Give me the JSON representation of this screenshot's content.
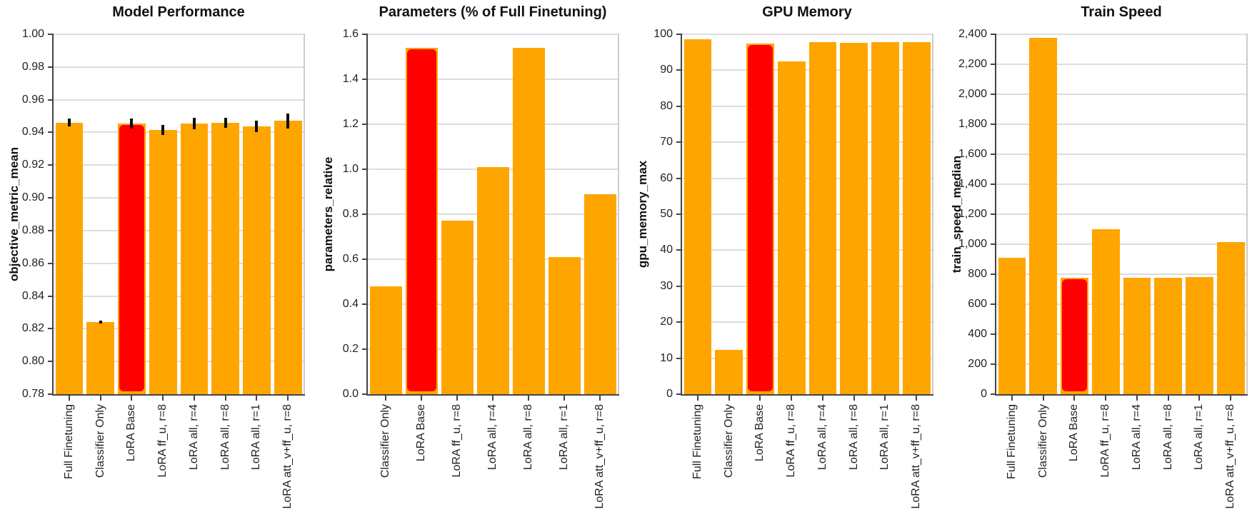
{
  "figure": {
    "background_color": "#ffffff",
    "bar_color": "#FFA500",
    "highlight_bar_color": "#FF0000",
    "highlighted_category": "LoRA Base",
    "grid_color": "#dddddd",
    "spine_color": "#cccccc",
    "axis_color": "#444444",
    "error_bar_color": "#0a0a0a"
  },
  "chart_data": [
    {
      "type": "bar",
      "title": "Model Performance",
      "ylabel": "objective_metric_mean",
      "xlabel": "",
      "categories": [
        "Full Finetuning",
        "Classifier Only",
        "LoRA Base",
        "LoRA ff_u, r=8",
        "LoRA all, r=4",
        "LoRA all, r=8",
        "LoRA all, r=1",
        "LoRA att_v+ff_u, r=8"
      ],
      "values": [
        0.946,
        0.824,
        0.9455,
        0.9415,
        0.9455,
        0.946,
        0.9435,
        0.947
      ],
      "errors": [
        0.0025,
        0.001,
        0.003,
        0.003,
        0.0035,
        0.003,
        0.0035,
        0.0045
      ],
      "highlight_index": 2,
      "ylim": [
        0.78,
        1.0
      ],
      "ytick_step": 0.02,
      "ytick_decimals": 2,
      "thousands_separator": false,
      "grid": true,
      "legend": "none"
    },
    {
      "type": "bar",
      "title": "Parameters (% of Full Finetuning)",
      "ylabel": "parameters_relative",
      "xlabel": "",
      "categories": [
        "Classifier Only",
        "LoRA Base",
        "LoRA ff_u, r=8",
        "LoRA all, r=4",
        "LoRA all, r=8",
        "LoRA all, r=1",
        "LoRA att_v+ff_u, r=8"
      ],
      "values": [
        0.48,
        1.54,
        0.77,
        1.01,
        1.54,
        0.61,
        0.89
      ],
      "errors": null,
      "highlight_index": 1,
      "ylim": [
        0.0,
        1.6
      ],
      "ytick_step": 0.2,
      "ytick_decimals": 1,
      "thousands_separator": false,
      "grid": true,
      "legend": "none"
    },
    {
      "type": "bar",
      "title": "GPU Memory",
      "ylabel": "gpu_memory_max",
      "xlabel": "",
      "categories": [
        "Full Finetuning",
        "Classifier Only",
        "LoRA Base",
        "LoRA ff_u, r=8",
        "LoRA all, r=4",
        "LoRA all, r=8",
        "LoRA all, r=1",
        "LoRA att_v+ff_u, r=8"
      ],
      "values": [
        98.6,
        12.3,
        97.4,
        92.4,
        97.9,
        97.6,
        97.8,
        97.9
      ],
      "errors": null,
      "highlight_index": 2,
      "ylim": [
        0,
        100
      ],
      "ytick_step": 10,
      "ytick_decimals": 0,
      "thousands_separator": false,
      "grid": true,
      "legend": "none"
    },
    {
      "type": "bar",
      "title": "Train Speed",
      "ylabel": "train_speed_median",
      "xlabel": "",
      "categories": [
        "Full Finetuning",
        "Classifier Only",
        "LoRA Base",
        "LoRA ff_u, r=8",
        "LoRA all, r=4",
        "LoRA all, r=8",
        "LoRA all, r=1",
        "LoRA att_v+ff_u, r=8"
      ],
      "values": [
        910,
        2375,
        776,
        1100,
        778,
        777,
        783,
        1012
      ],
      "errors": null,
      "highlight_index": 2,
      "ylim": [
        0,
        2400
      ],
      "ytick_step": 200,
      "ytick_decimals": 0,
      "thousands_separator": true,
      "grid": true,
      "legend": "none"
    }
  ]
}
